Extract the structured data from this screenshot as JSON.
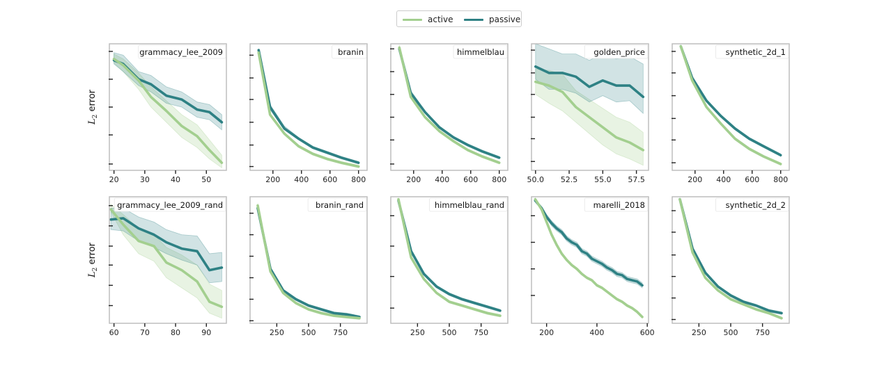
{
  "legend": {
    "items": [
      {
        "label": "active",
        "color": "#a3cf8f"
      },
      {
        "label": "passive",
        "color": "#2e8184"
      }
    ]
  },
  "ylabel_text": "L",
  "ylabel_sub": "2",
  "ylabel_rest": " error",
  "chart_data": [
    {
      "type": "line",
      "title": "grammacy_lee_2009",
      "xlim": [
        18.5,
        56.5
      ],
      "ylim": [
        0,
        1
      ],
      "xticks": [
        20,
        30,
        40,
        50
      ],
      "xtick_labels": [
        "20",
        "30",
        "40",
        "50"
      ],
      "yticks": [
        0.05,
        0.28,
        0.5,
        0.72,
        0.94
      ],
      "x": [
        20,
        23,
        28,
        32,
        37,
        42,
        47,
        51,
        55
      ],
      "series": [
        {
          "name": "active",
          "values": [
            0.88,
            0.83,
            0.71,
            0.58,
            0.47,
            0.35,
            0.27,
            0.16,
            0.06
          ],
          "lower": [
            0.85,
            0.78,
            0.64,
            0.5,
            0.38,
            0.26,
            0.18,
            0.09,
            0.02
          ],
          "upper": [
            0.92,
            0.88,
            0.77,
            0.66,
            0.55,
            0.44,
            0.36,
            0.24,
            0.12
          ]
        },
        {
          "name": "passive",
          "values": [
            0.87,
            0.84,
            0.72,
            0.68,
            0.59,
            0.56,
            0.48,
            0.46,
            0.38
          ],
          "lower": [
            0.84,
            0.78,
            0.67,
            0.62,
            0.53,
            0.5,
            0.42,
            0.4,
            0.32
          ],
          "upper": [
            0.93,
            0.91,
            0.78,
            0.75,
            0.66,
            0.62,
            0.54,
            0.52,
            0.44
          ]
        }
      ]
    },
    {
      "type": "line",
      "title": "branin",
      "xlim": [
        40,
        860
      ],
      "ylim": [
        0,
        1
      ],
      "xticks": [
        200,
        400,
        600,
        800
      ],
      "xtick_labels": [
        "200",
        "400",
        "600",
        "800"
      ],
      "yticks": [
        0.03,
        0.2,
        0.38,
        0.56,
        0.73,
        0.91
      ],
      "x": [
        100,
        180,
        280,
        380,
        480,
        580,
        680,
        800
      ],
      "series": [
        {
          "name": "active",
          "values": [
            0.93,
            0.44,
            0.29,
            0.19,
            0.13,
            0.09,
            0.06,
            0.03
          ],
          "lower": [
            0.92,
            0.43,
            0.28,
            0.18,
            0.12,
            0.08,
            0.05,
            0.02
          ],
          "upper": [
            0.95,
            0.45,
            0.3,
            0.2,
            0.14,
            0.1,
            0.07,
            0.04
          ]
        },
        {
          "name": "passive",
          "values": [
            0.95,
            0.5,
            0.33,
            0.25,
            0.18,
            0.14,
            0.1,
            0.06
          ],
          "lower": [
            0.94,
            0.48,
            0.32,
            0.24,
            0.17,
            0.13,
            0.09,
            0.05
          ],
          "upper": [
            0.96,
            0.52,
            0.35,
            0.26,
            0.19,
            0.15,
            0.11,
            0.07
          ]
        }
      ]
    },
    {
      "type": "line",
      "title": "himmelblau",
      "xlim": [
        40,
        860
      ],
      "ylim": [
        0,
        1
      ],
      "xticks": [
        200,
        400,
        600,
        800
      ],
      "xtick_labels": [
        "200",
        "400",
        "600",
        "800"
      ],
      "yticks": [
        0.05,
        0.24,
        0.42,
        0.6,
        0.78,
        0.96
      ],
      "x": [
        100,
        180,
        280,
        380,
        480,
        580,
        680,
        800
      ],
      "series": [
        {
          "name": "active",
          "values": [
            0.97,
            0.58,
            0.42,
            0.31,
            0.23,
            0.16,
            0.11,
            0.06
          ],
          "lower": [
            0.95,
            0.57,
            0.41,
            0.3,
            0.22,
            0.15,
            0.1,
            0.05
          ],
          "upper": [
            0.99,
            0.6,
            0.43,
            0.32,
            0.24,
            0.17,
            0.12,
            0.07
          ]
        },
        {
          "name": "passive",
          "values": [
            0.96,
            0.61,
            0.46,
            0.34,
            0.26,
            0.2,
            0.15,
            0.1
          ],
          "lower": [
            0.95,
            0.6,
            0.45,
            0.33,
            0.25,
            0.19,
            0.14,
            0.09
          ],
          "upper": [
            0.97,
            0.63,
            0.47,
            0.35,
            0.27,
            0.21,
            0.16,
            0.11
          ]
        }
      ]
    },
    {
      "type": "line",
      "title": "golden_price",
      "xlim": [
        49.7,
        58.4
      ],
      "ylim": [
        0,
        1
      ],
      "xticks": [
        50,
        52.5,
        55,
        57.5
      ],
      "xtick_labels": [
        "50.0",
        "52.5",
        "55.0",
        "57.5"
      ],
      "yticks": [
        0.07,
        0.25,
        0.42,
        0.6,
        0.77,
        0.95
      ],
      "x": [
        50,
        51,
        52,
        53,
        54,
        55,
        56,
        57,
        58
      ],
      "series": [
        {
          "name": "active",
          "values": [
            0.7,
            0.67,
            0.62,
            0.5,
            0.42,
            0.34,
            0.26,
            0.22,
            0.16
          ],
          "lower": [
            0.6,
            0.53,
            0.47,
            0.38,
            0.29,
            0.2,
            0.13,
            0.09,
            0.04
          ],
          "upper": [
            0.8,
            0.79,
            0.76,
            0.63,
            0.56,
            0.49,
            0.42,
            0.38,
            0.3
          ]
        },
        {
          "name": "passive",
          "values": [
            0.82,
            0.77,
            0.77,
            0.74,
            0.66,
            0.71,
            0.67,
            0.67,
            0.58
          ],
          "lower": [
            0.72,
            0.64,
            0.64,
            0.61,
            0.54,
            0.59,
            0.54,
            0.55,
            0.45
          ],
          "upper": [
            1.0,
            0.96,
            0.92,
            0.92,
            0.87,
            0.92,
            0.88,
            0.9,
            0.84
          ]
        }
      ]
    },
    {
      "type": "line",
      "title": "synthetic_2d_1",
      "xlim": [
        40,
        860
      ],
      "ylim": [
        0,
        1
      ],
      "xticks": [
        200,
        400,
        600,
        800
      ],
      "xtick_labels": [
        "200",
        "400",
        "600",
        "800"
      ],
      "yticks": [
        0.06,
        0.24,
        0.41,
        0.59,
        0.77,
        0.94
      ],
      "x": [
        100,
        180,
        280,
        380,
        480,
        580,
        680,
        800
      ],
      "series": [
        {
          "name": "active",
          "values": [
            0.98,
            0.71,
            0.5,
            0.37,
            0.25,
            0.17,
            0.11,
            0.05
          ],
          "lower": [
            0.97,
            0.7,
            0.49,
            0.36,
            0.24,
            0.16,
            0.1,
            0.04
          ],
          "upper": [
            0.99,
            0.73,
            0.51,
            0.38,
            0.26,
            0.18,
            0.12,
            0.06
          ]
        },
        {
          "name": "passive",
          "values": [
            0.98,
            0.73,
            0.55,
            0.43,
            0.33,
            0.25,
            0.19,
            0.12
          ],
          "lower": [
            0.97,
            0.72,
            0.54,
            0.42,
            0.32,
            0.24,
            0.18,
            0.11
          ],
          "upper": [
            0.99,
            0.74,
            0.56,
            0.44,
            0.34,
            0.26,
            0.2,
            0.13
          ]
        }
      ]
    },
    {
      "type": "line",
      "title": "grammacy_lee_2009_rand",
      "xlim": [
        58.5,
        96.5
      ],
      "ylim": [
        0,
        1
      ],
      "xticks": [
        60,
        70,
        80,
        90
      ],
      "xtick_labels": [
        "60",
        "70",
        "80",
        "90"
      ],
      "yticks": [
        0.14,
        0.3,
        0.46,
        0.61,
        0.77,
        0.93
      ],
      "x": [
        59,
        63,
        68,
        73,
        77,
        82,
        87,
        91,
        95
      ],
      "series": [
        {
          "name": "active",
          "values": [
            0.9,
            0.78,
            0.65,
            0.61,
            0.48,
            0.42,
            0.33,
            0.17,
            0.13
          ],
          "lower": [
            0.88,
            0.7,
            0.55,
            0.49,
            0.36,
            0.28,
            0.2,
            0.08,
            0.04
          ],
          "upper": [
            0.94,
            0.86,
            0.75,
            0.7,
            0.6,
            0.54,
            0.46,
            0.31,
            0.26
          ]
        },
        {
          "name": "passive",
          "values": [
            0.82,
            0.83,
            0.75,
            0.7,
            0.64,
            0.59,
            0.57,
            0.42,
            0.44
          ],
          "lower": [
            0.74,
            0.73,
            0.65,
            0.6,
            0.55,
            0.5,
            0.46,
            0.32,
            0.33
          ],
          "upper": [
            0.91,
            0.91,
            0.84,
            0.8,
            0.74,
            0.7,
            0.69,
            0.55,
            0.56
          ]
        }
      ]
    },
    {
      "type": "line",
      "title": "branin_rand",
      "xlim": [
        40,
        960
      ],
      "ylim": [
        0,
        1
      ],
      "xticks": [
        250,
        500,
        750
      ],
      "xtick_labels": [
        "250",
        "500",
        "750"
      ],
      "yticks": [
        0.02,
        0.19,
        0.36,
        0.53,
        0.7,
        0.87
      ],
      "x": [
        100,
        200,
        300,
        400,
        500,
        600,
        700,
        800,
        900
      ],
      "series": [
        {
          "name": "active",
          "values": [
            0.93,
            0.41,
            0.24,
            0.16,
            0.11,
            0.08,
            0.06,
            0.05,
            0.04
          ],
          "lower": [
            0.92,
            0.4,
            0.23,
            0.15,
            0.1,
            0.07,
            0.05,
            0.04,
            0.03
          ],
          "upper": [
            0.95,
            0.43,
            0.25,
            0.17,
            0.12,
            0.09,
            0.07,
            0.06,
            0.05
          ]
        },
        {
          "name": "passive",
          "values": [
            0.91,
            0.43,
            0.26,
            0.19,
            0.14,
            0.11,
            0.08,
            0.07,
            0.05
          ],
          "lower": [
            0.9,
            0.42,
            0.25,
            0.18,
            0.13,
            0.1,
            0.07,
            0.06,
            0.04
          ],
          "upper": [
            0.92,
            0.44,
            0.27,
            0.2,
            0.15,
            0.12,
            0.09,
            0.08,
            0.06
          ]
        }
      ]
    },
    {
      "type": "line",
      "title": "himmelblau_rand",
      "xlim": [
        40,
        960
      ],
      "ylim": [
        0,
        1
      ],
      "xticks": [
        250,
        500,
        750
      ],
      "xtick_labels": [
        "250",
        "500",
        "750"
      ],
      "yticks": [
        0.12,
        0.37,
        0.61,
        0.85
      ],
      "x": [
        100,
        200,
        300,
        400,
        500,
        600,
        700,
        800,
        900
      ],
      "series": [
        {
          "name": "active",
          "values": [
            0.98,
            0.52,
            0.35,
            0.24,
            0.17,
            0.14,
            0.11,
            0.08,
            0.06
          ],
          "lower": [
            0.97,
            0.51,
            0.34,
            0.23,
            0.16,
            0.13,
            0.1,
            0.07,
            0.05
          ],
          "upper": [
            0.99,
            0.53,
            0.36,
            0.25,
            0.18,
            0.15,
            0.12,
            0.09,
            0.07
          ]
        },
        {
          "name": "passive",
          "values": [
            0.97,
            0.57,
            0.39,
            0.29,
            0.23,
            0.19,
            0.16,
            0.13,
            0.1
          ],
          "lower": [
            0.96,
            0.56,
            0.38,
            0.28,
            0.22,
            0.18,
            0.15,
            0.12,
            0.09
          ],
          "upper": [
            0.98,
            0.58,
            0.4,
            0.3,
            0.24,
            0.2,
            0.17,
            0.14,
            0.11
          ]
        }
      ]
    },
    {
      "type": "line",
      "title": "marelli_2018",
      "xlim": [
        140,
        605
      ],
      "ylim": [
        0,
        1
      ],
      "xticks": [
        200,
        400,
        600
      ],
      "xtick_labels": [
        "200",
        "400",
        "600"
      ],
      "yticks": [
        0.22,
        0.43,
        0.64,
        0.85
      ],
      "x": [
        155,
        180,
        200,
        220,
        240,
        260,
        280,
        300,
        320,
        340,
        360,
        380,
        400,
        420,
        440,
        460,
        480,
        500,
        520,
        540,
        560,
        580
      ],
      "series": [
        {
          "name": "active",
          "values": [
            0.98,
            0.9,
            0.8,
            0.7,
            0.62,
            0.55,
            0.5,
            0.46,
            0.43,
            0.39,
            0.36,
            0.34,
            0.3,
            0.28,
            0.25,
            0.22,
            0.19,
            0.17,
            0.14,
            0.12,
            0.09,
            0.05
          ],
          "lower": [
            0.97,
            0.89,
            0.79,
            0.69,
            0.61,
            0.54,
            0.49,
            0.45,
            0.42,
            0.38,
            0.35,
            0.33,
            0.29,
            0.27,
            0.24,
            0.21,
            0.18,
            0.16,
            0.13,
            0.11,
            0.08,
            0.04
          ],
          "upper": [
            0.99,
            0.91,
            0.81,
            0.71,
            0.63,
            0.56,
            0.51,
            0.47,
            0.44,
            0.4,
            0.37,
            0.35,
            0.31,
            0.29,
            0.26,
            0.23,
            0.2,
            0.18,
            0.15,
            0.13,
            0.1,
            0.06
          ]
        },
        {
          "name": "passive",
          "values": [
            0.97,
            0.91,
            0.84,
            0.79,
            0.75,
            0.72,
            0.67,
            0.64,
            0.62,
            0.57,
            0.55,
            0.51,
            0.49,
            0.47,
            0.44,
            0.42,
            0.39,
            0.38,
            0.35,
            0.34,
            0.33,
            0.3
          ],
          "lower": [
            0.96,
            0.9,
            0.83,
            0.77,
            0.73,
            0.7,
            0.65,
            0.62,
            0.6,
            0.55,
            0.53,
            0.49,
            0.47,
            0.45,
            0.42,
            0.4,
            0.37,
            0.36,
            0.33,
            0.32,
            0.31,
            0.28
          ],
          "upper": [
            0.98,
            0.92,
            0.86,
            0.81,
            0.77,
            0.74,
            0.69,
            0.66,
            0.64,
            0.59,
            0.57,
            0.53,
            0.51,
            0.49,
            0.46,
            0.44,
            0.41,
            0.4,
            0.37,
            0.36,
            0.35,
            0.32
          ]
        }
      ]
    },
    {
      "type": "line",
      "title": "synthetic_2d_2",
      "xlim": [
        40,
        960
      ],
      "ylim": [
        0,
        1
      ],
      "xticks": [
        250,
        500,
        750
      ],
      "xtick_labels": [
        "250",
        "500",
        "750"
      ],
      "yticks": [
        0.03,
        0.2,
        0.37,
        0.54,
        0.72,
        0.89
      ],
      "x": [
        100,
        200,
        300,
        400,
        500,
        600,
        700,
        800,
        900
      ],
      "series": [
        {
          "name": "active",
          "values": [
            0.98,
            0.56,
            0.36,
            0.26,
            0.19,
            0.15,
            0.11,
            0.08,
            0.04
          ],
          "lower": [
            0.97,
            0.55,
            0.35,
            0.25,
            0.18,
            0.14,
            0.1,
            0.07,
            0.03
          ],
          "upper": [
            0.99,
            0.57,
            0.37,
            0.27,
            0.2,
            0.16,
            0.12,
            0.09,
            0.05
          ]
        },
        {
          "name": "passive",
          "values": [
            0.98,
            0.59,
            0.4,
            0.29,
            0.22,
            0.17,
            0.14,
            0.1,
            0.08
          ],
          "lower": [
            0.97,
            0.58,
            0.39,
            0.28,
            0.21,
            0.16,
            0.13,
            0.09,
            0.07
          ],
          "upper": [
            0.99,
            0.6,
            0.41,
            0.3,
            0.23,
            0.18,
            0.15,
            0.11,
            0.09
          ]
        }
      ]
    }
  ]
}
